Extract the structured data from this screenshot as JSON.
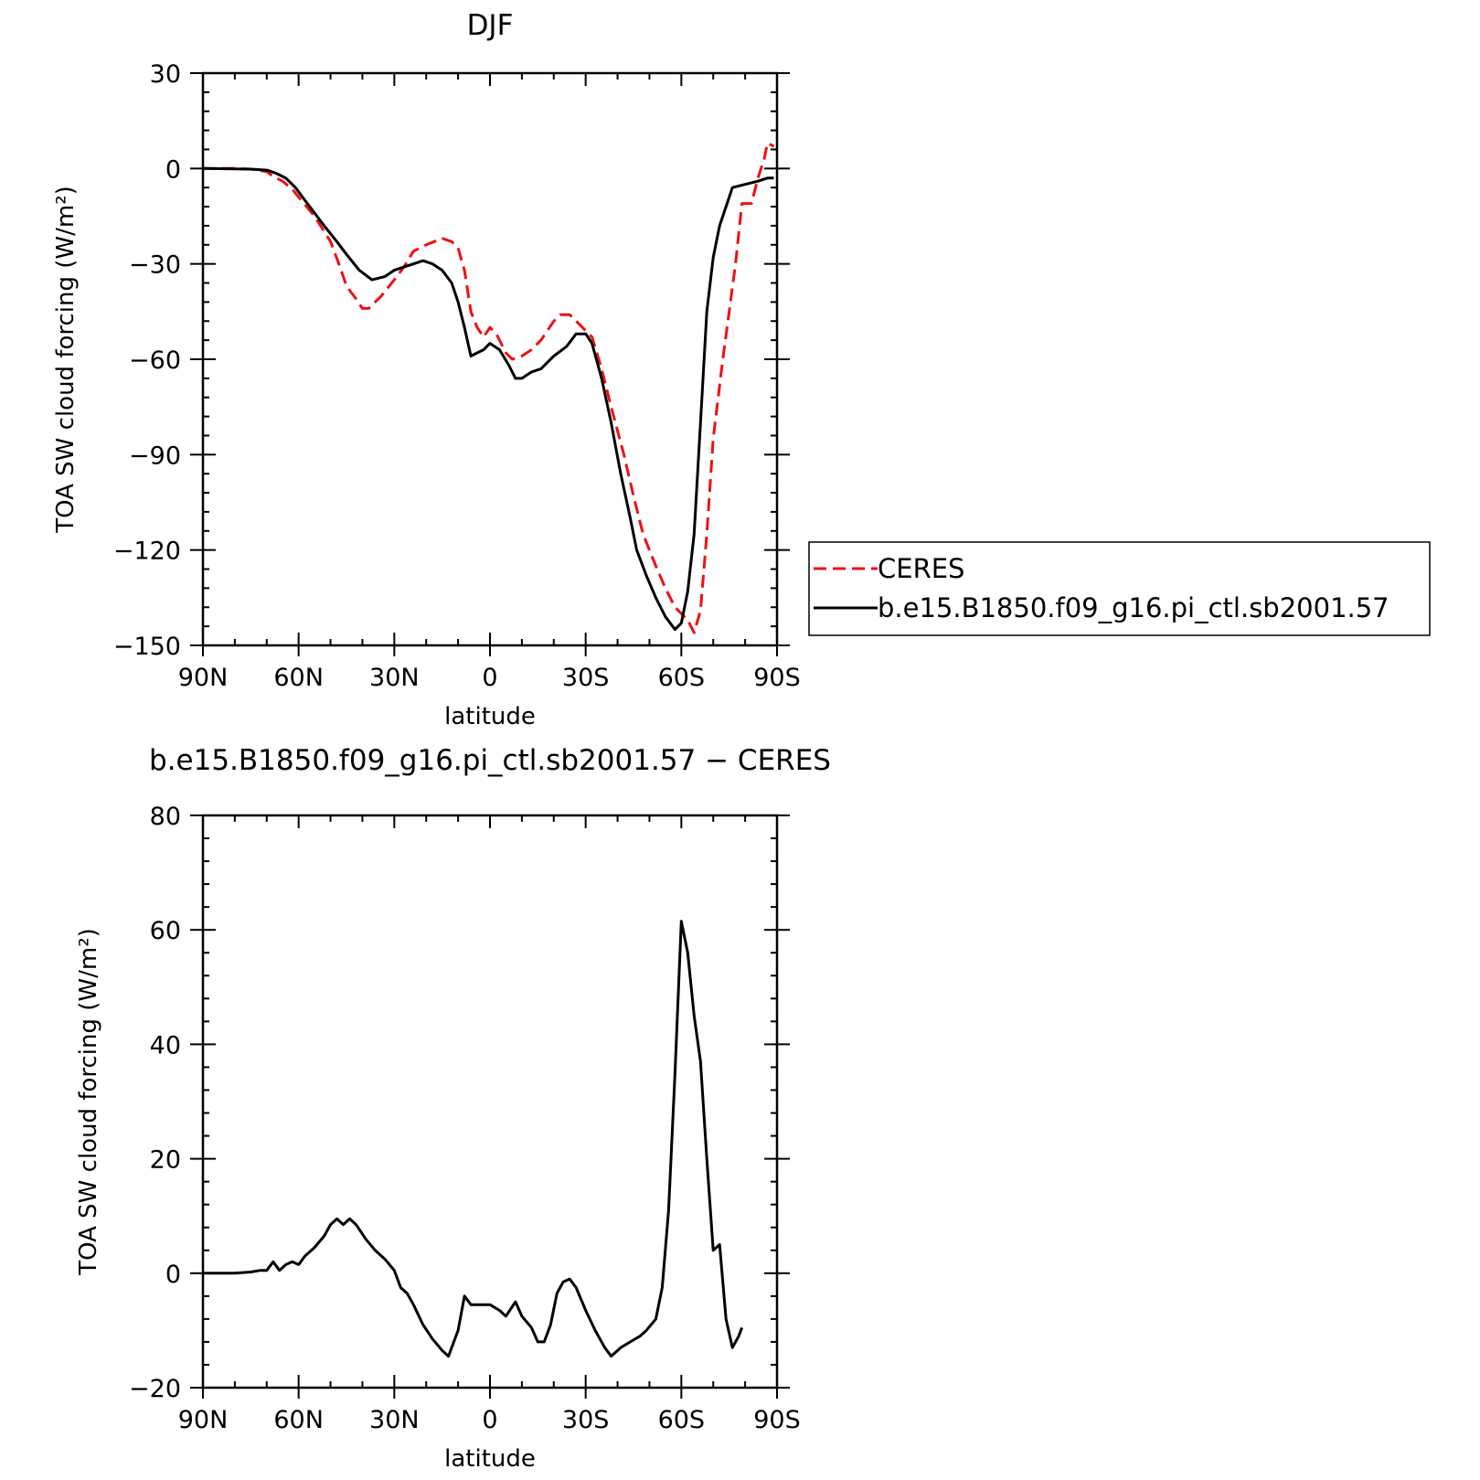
{
  "chart_data": [
    {
      "type": "line",
      "title": "DJF",
      "xlabel": "latitude",
      "ylabel": "TOA SW cloud forcing (W/m²)",
      "xlim": [
        90,
        -90
      ],
      "ylim": [
        -150,
        30
      ],
      "x_ticks": [
        {
          "value": 90,
          "label": "90N"
        },
        {
          "value": 60,
          "label": "60N"
        },
        {
          "value": 30,
          "label": "30N"
        },
        {
          "value": 0,
          "label": "0"
        },
        {
          "value": -30,
          "label": "30S"
        },
        {
          "value": -60,
          "label": "60S"
        },
        {
          "value": -90,
          "label": "90S"
        }
      ],
      "y_ticks": [
        {
          "value": 30,
          "label": "30"
        },
        {
          "value": 0,
          "label": "0"
        },
        {
          "value": -30,
          "label": "−30"
        },
        {
          "value": -60,
          "label": "−60"
        },
        {
          "value": -90,
          "label": "−90"
        },
        {
          "value": -120,
          "label": "−120"
        },
        {
          "value": -150,
          "label": "−150"
        }
      ],
      "legend": {
        "position": "right"
      },
      "series": [
        {
          "name": "CERES",
          "color": "#ee1111",
          "dash": "dashed",
          "points": [
            [
              90,
              0
            ],
            [
              80,
              0
            ],
            [
              75,
              -0.2
            ],
            [
              70,
              -1
            ],
            [
              68,
              -2.5
            ],
            [
              65,
              -4
            ],
            [
              62,
              -6.5
            ],
            [
              60,
              -9
            ],
            [
              55,
              -15
            ],
            [
              50,
              -23
            ],
            [
              47,
              -31
            ],
            [
              45,
              -37
            ],
            [
              42,
              -41
            ],
            [
              40,
              -44
            ],
            [
              38,
              -44
            ],
            [
              34,
              -40
            ],
            [
              30,
              -35
            ],
            [
              27,
              -31
            ],
            [
              24,
              -26
            ],
            [
              20,
              -24
            ],
            [
              15,
              -22
            ],
            [
              12,
              -23
            ],
            [
              10,
              -25
            ],
            [
              8,
              -32
            ],
            [
              6,
              -45
            ],
            [
              4,
              -50
            ],
            [
              2,
              -53
            ],
            [
              0,
              -50
            ],
            [
              -2,
              -52
            ],
            [
              -5,
              -58
            ],
            [
              -7,
              -60
            ],
            [
              -10,
              -59
            ],
            [
              -13,
              -57
            ],
            [
              -16,
              -54
            ],
            [
              -20,
              -48
            ],
            [
              -22,
              -46
            ],
            [
              -25,
              -46
            ],
            [
              -28,
              -49
            ],
            [
              -32,
              -53
            ],
            [
              -35,
              -63
            ],
            [
              -38,
              -75
            ],
            [
              -42,
              -90
            ],
            [
              -45,
              -103
            ],
            [
              -48,
              -115
            ],
            [
              -52,
              -125
            ],
            [
              -55,
              -132
            ],
            [
              -58,
              -138
            ],
            [
              -62,
              -142
            ],
            [
              -64,
              -146
            ],
            [
              -66,
              -139
            ],
            [
              -68,
              -115
            ],
            [
              -70,
              -85
            ],
            [
              -73,
              -60
            ],
            [
              -75,
              -45
            ],
            [
              -77,
              -30
            ],
            [
              -79,
              -11
            ],
            [
              -82,
              -11
            ],
            [
              -84,
              -3
            ],
            [
              -86,
              3
            ],
            [
              -87,
              8
            ],
            [
              -89,
              7
            ]
          ]
        },
        {
          "name": "b.e15.B1850.f09_g16.pi_ctl.sb2001.57",
          "color": "#000000",
          "dash": "solid",
          "points": [
            [
              90,
              0
            ],
            [
              75,
              -0.2
            ],
            [
              70,
              -0.5
            ],
            [
              67,
              -1.5
            ],
            [
              64,
              -3
            ],
            [
              61,
              -6
            ],
            [
              58,
              -10
            ],
            [
              55,
              -14
            ],
            [
              52,
              -18
            ],
            [
              48,
              -23
            ],
            [
              45,
              -27
            ],
            [
              41,
              -32
            ],
            [
              37,
              -35
            ],
            [
              33,
              -34
            ],
            [
              30,
              -32
            ],
            [
              27,
              -31
            ],
            [
              24,
              -30
            ],
            [
              21,
              -29
            ],
            [
              18,
              -30
            ],
            [
              15,
              -32
            ],
            [
              12,
              -36
            ],
            [
              10,
              -42
            ],
            [
              8,
              -50
            ],
            [
              6,
              -59
            ],
            [
              4,
              -58
            ],
            [
              2,
              -57
            ],
            [
              0,
              -55
            ],
            [
              -3,
              -57
            ],
            [
              -6,
              -62
            ],
            [
              -8,
              -66
            ],
            [
              -10,
              -66
            ],
            [
              -13,
              -64
            ],
            [
              -16,
              -63
            ],
            [
              -20,
              -59
            ],
            [
              -24,
              -56
            ],
            [
              -27,
              -52
            ],
            [
              -30,
              -52
            ],
            [
              -32,
              -55
            ],
            [
              -35,
              -66
            ],
            [
              -38,
              -80
            ],
            [
              -41,
              -96
            ],
            [
              -44,
              -110
            ],
            [
              -46,
              -120
            ],
            [
              -49,
              -128
            ],
            [
              -52,
              -135
            ],
            [
              -55,
              -141
            ],
            [
              -58,
              -145
            ],
            [
              -60,
              -143
            ],
            [
              -62,
              -133
            ],
            [
              -64,
              -115
            ],
            [
              -66,
              -80
            ],
            [
              -68,
              -45
            ],
            [
              -70,
              -28
            ],
            [
              -72,
              -18
            ],
            [
              -74,
              -12
            ],
            [
              -76,
              -6
            ],
            [
              -80,
              -5
            ],
            [
              -84,
              -4
            ],
            [
              -87,
              -3
            ],
            [
              -89,
              -3
            ]
          ]
        }
      ]
    },
    {
      "type": "line",
      "title": "b.e15.B1850.f09_g16.pi_ctl.sb2001.57 − CERES",
      "xlabel": "latitude",
      "ylabel": "TOA SW cloud forcing (W/m²)",
      "xlim": [
        90,
        -90
      ],
      "ylim": [
        -20,
        80
      ],
      "x_ticks": [
        {
          "value": 90,
          "label": "90N"
        },
        {
          "value": 60,
          "label": "60N"
        },
        {
          "value": 30,
          "label": "30N"
        },
        {
          "value": 0,
          "label": "0"
        },
        {
          "value": -30,
          "label": "30S"
        },
        {
          "value": -60,
          "label": "60S"
        },
        {
          "value": -90,
          "label": "90S"
        }
      ],
      "y_ticks": [
        {
          "value": 80,
          "label": "80"
        },
        {
          "value": 60,
          "label": "60"
        },
        {
          "value": 40,
          "label": "40"
        },
        {
          "value": 20,
          "label": "20"
        },
        {
          "value": 0,
          "label": "0"
        },
        {
          "value": -20,
          "label": "−20"
        }
      ],
      "series": [
        {
          "color": "#000000",
          "dash": "solid",
          "points": [
            [
              90,
              0
            ],
            [
              80,
              0
            ],
            [
              75,
              0.2
            ],
            [
              72,
              0.5
            ],
            [
              70,
              0.5
            ],
            [
              68,
              2
            ],
            [
              66,
              0.5
            ],
            [
              64,
              1.5
            ],
            [
              62,
              2
            ],
            [
              60,
              1.5
            ],
            [
              58,
              3
            ],
            [
              55,
              4.5
            ],
            [
              52,
              6.5
            ],
            [
              50,
              8.5
            ],
            [
              48,
              9.5
            ],
            [
              46,
              8.5
            ],
            [
              44,
              9.5
            ],
            [
              42,
              8.5
            ],
            [
              39,
              6
            ],
            [
              36,
              4
            ],
            [
              33,
              2.5
            ],
            [
              30,
              0.5
            ],
            [
              28,
              -2.5
            ],
            [
              26,
              -3.5
            ],
            [
              24,
              -5.5
            ],
            [
              21,
              -9
            ],
            [
              18,
              -11.5
            ],
            [
              15,
              -13.5
            ],
            [
              13,
              -14.5
            ],
            [
              10,
              -10
            ],
            [
              8,
              -4
            ],
            [
              6,
              -5.5
            ],
            [
              3,
              -5.5
            ],
            [
              0,
              -5.5
            ],
            [
              -3,
              -6.5
            ],
            [
              -5,
              -7.5
            ],
            [
              -8,
              -5
            ],
            [
              -10,
              -7.5
            ],
            [
              -13,
              -9.5
            ],
            [
              -15,
              -12
            ],
            [
              -17,
              -12
            ],
            [
              -19,
              -9
            ],
            [
              -21,
              -3.5
            ],
            [
              -23,
              -1.5
            ],
            [
              -25,
              -1
            ],
            [
              -27,
              -2.5
            ],
            [
              -30,
              -6.5
            ],
            [
              -33,
              -10
            ],
            [
              -36,
              -13
            ],
            [
              -38,
              -14.5
            ],
            [
              -41,
              -13
            ],
            [
              -44,
              -12
            ],
            [
              -47,
              -11
            ],
            [
              -49,
              -10
            ],
            [
              -52,
              -8
            ],
            [
              -54,
              -2.5
            ],
            [
              -56,
              11
            ],
            [
              -58,
              35
            ],
            [
              -60,
              61.5
            ],
            [
              -62,
              56
            ],
            [
              -64,
              45
            ],
            [
              -66,
              37
            ],
            [
              -68,
              20
            ],
            [
              -70,
              4
            ],
            [
              -72,
              5
            ],
            [
              -74,
              -8
            ],
            [
              -76,
              -13
            ],
            [
              -78,
              -11
            ],
            [
              -79,
              -9.5
            ]
          ]
        }
      ]
    }
  ]
}
